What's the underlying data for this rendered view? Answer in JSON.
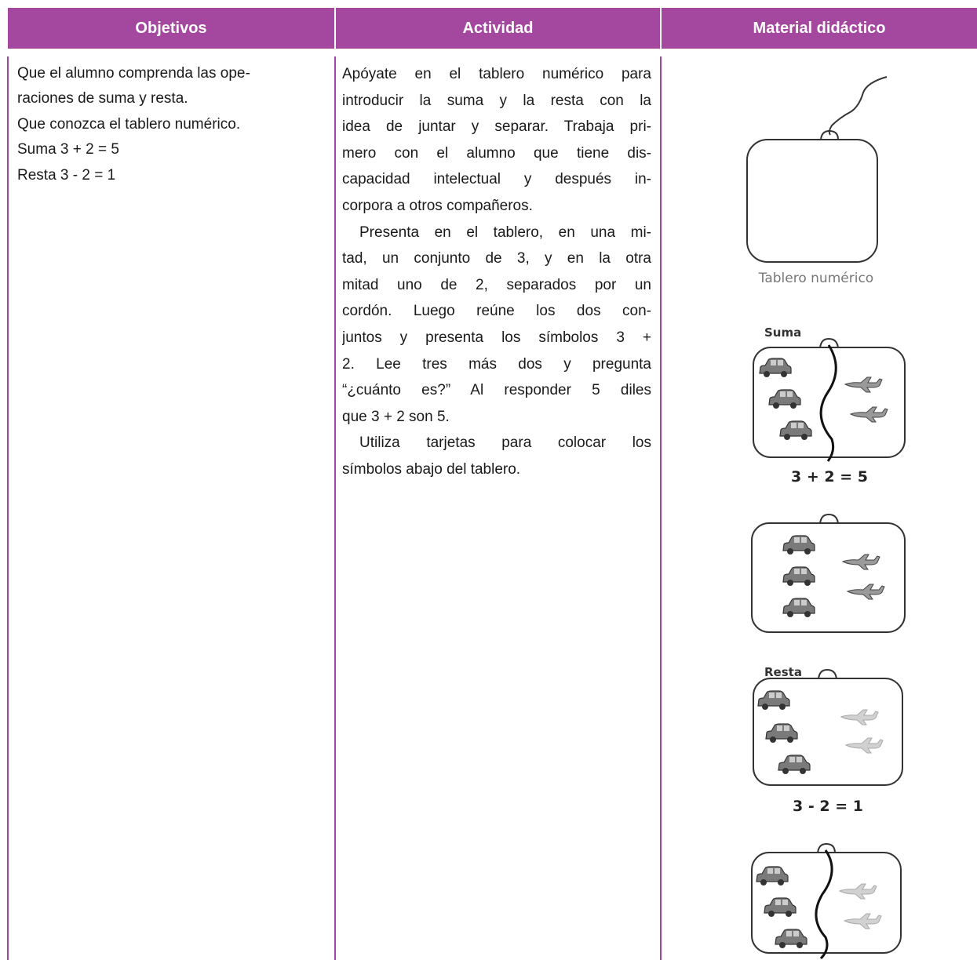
{
  "header": {
    "columns": [
      "Objetivos",
      "Actividad",
      "Material didáctico"
    ]
  },
  "objetivos": {
    "lines": [
      "Que el alumno comprenda las ope-",
      "raciones de suma y resta.",
      "Que conozca el tablero numérico.",
      "Suma 3 + 2 = 5",
      "Resta 3 - 2 = 1"
    ]
  },
  "actividad": {
    "paragraphs": [
      [
        "Apóyate en el tablero numérico para",
        "introducir la suma y la resta con la",
        "idea de juntar y separar. Trabaja pri-",
        "mero con el alumno que tiene dis-",
        "capacidad intelectual y después in-",
        "corpora a otros compañeros."
      ],
      [
        "Presenta en el tablero, en una mi-",
        "tad, un conjunto de 3, y en la otra",
        "mitad uno de 2, separados por un",
        "cordón. Luego reúne los dos con-",
        "juntos y presenta los símbolos 3 +",
        "2. Lee tres más dos y pregunta",
        "“¿cuánto es?” Al responder 5 diles",
        "que 3 + 2 son 5."
      ],
      [
        "Utiliza tarjetas para colocar los",
        "símbolos abajo del tablero."
      ]
    ]
  },
  "material": {
    "tablero_label": "Tablero numérico",
    "suma_label": "Suma",
    "suma_equation": "3 + 2 = 5",
    "resta_label": "Resta",
    "resta_equation": "3 - 2 = 1"
  }
}
